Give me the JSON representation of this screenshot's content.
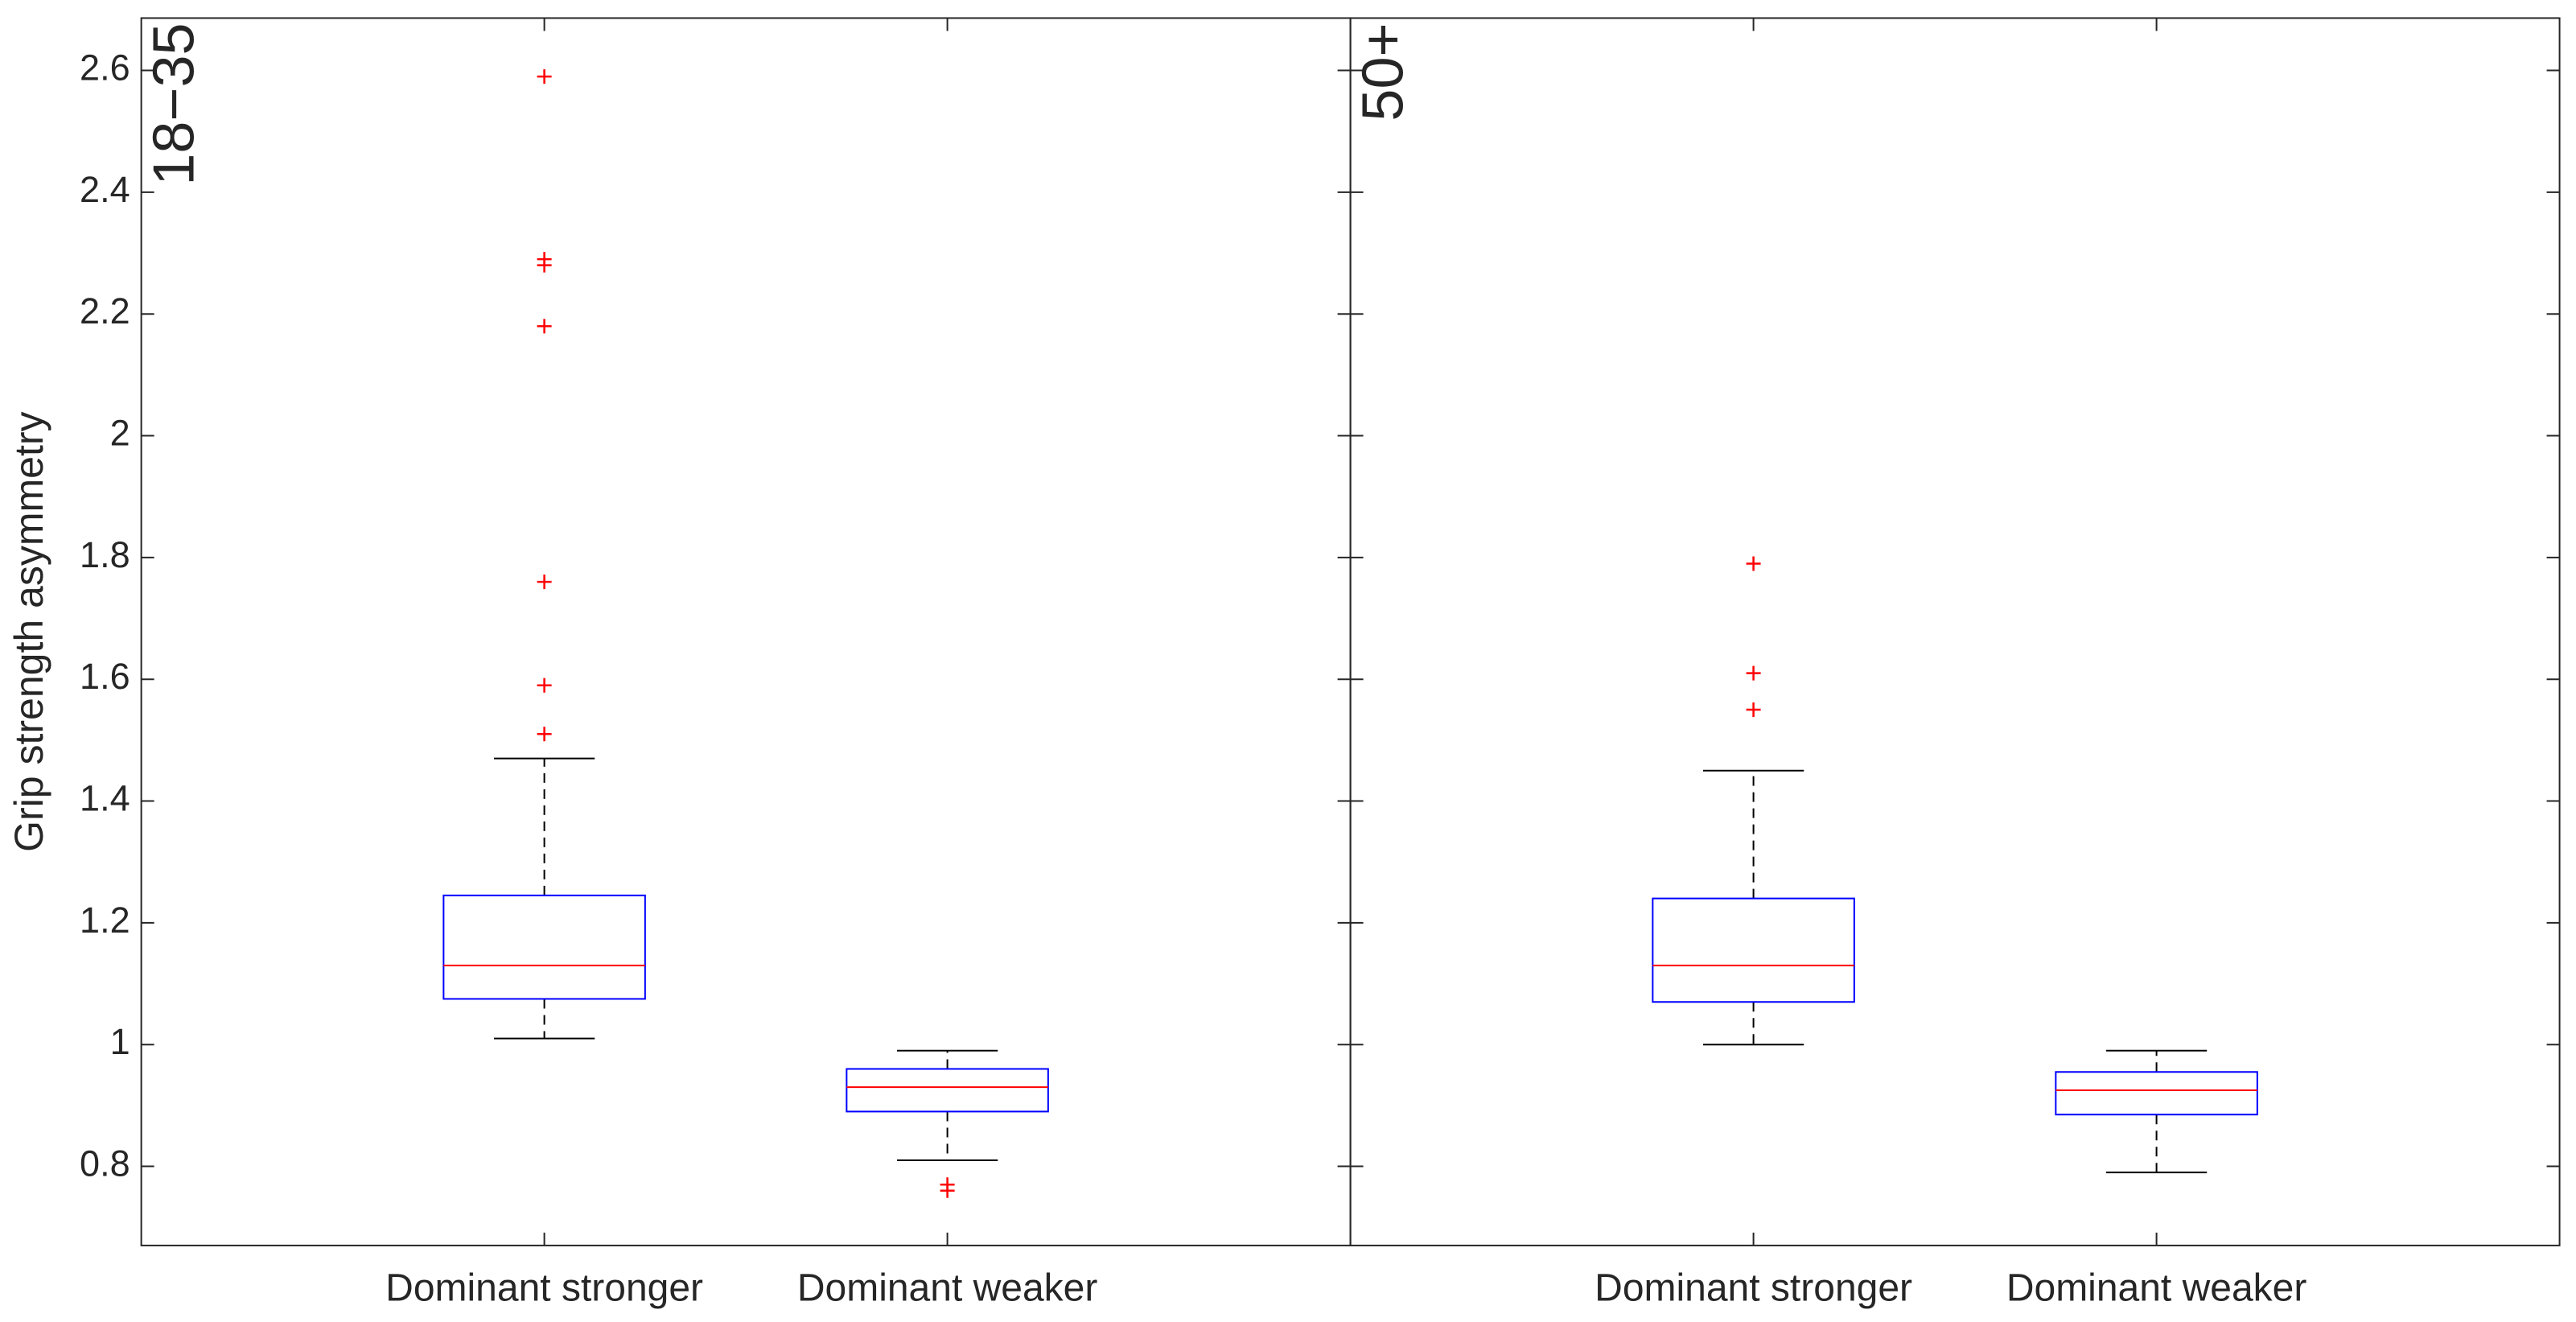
{
  "chart_data": [
    {
      "type": "box",
      "panel_label": "18−35",
      "ylabel": "Grip strength asymmetry",
      "categories": [
        "Dominant stronger",
        "Dominant weaker"
      ],
      "ylim": [
        0.67,
        2.686
      ],
      "yticks": [
        0.8,
        1,
        1.2,
        1.4,
        1.6,
        1.8,
        2,
        2.2,
        2.4,
        2.6
      ],
      "box_color": "#0000ff",
      "median_color": "#ff0000",
      "flier_color": "#ff0000",
      "boxes": [
        {
          "whislo": 1.01,
          "q1": 1.075,
          "med": 1.13,
          "q3": 1.245,
          "whishi": 1.47,
          "fliers": [
            1.51,
            1.59,
            1.76,
            2.18,
            2.28,
            2.29,
            2.59
          ]
        },
        {
          "whislo": 0.81,
          "q1": 0.89,
          "med": 0.93,
          "q3": 0.96,
          "whishi": 0.99,
          "fliers": [
            0.77,
            0.76
          ]
        }
      ]
    },
    {
      "type": "box",
      "panel_label": "50+",
      "categories": [
        "Dominant stronger",
        "Dominant weaker"
      ],
      "ylim": [
        0.67,
        2.686
      ],
      "yticks": [
        0.8,
        1,
        1.2,
        1.4,
        1.6,
        1.8,
        2,
        2.2,
        2.4,
        2.6
      ],
      "box_color": "#0000ff",
      "median_color": "#ff0000",
      "flier_color": "#ff0000",
      "boxes": [
        {
          "whislo": 1.0,
          "q1": 1.07,
          "med": 1.13,
          "q3": 1.24,
          "whishi": 1.45,
          "fliers": [
            1.55,
            1.61,
            1.79
          ]
        },
        {
          "whislo": 0.79,
          "q1": 0.885,
          "med": 0.925,
          "q3": 0.955,
          "whishi": 0.99,
          "fliers": []
        }
      ]
    }
  ]
}
